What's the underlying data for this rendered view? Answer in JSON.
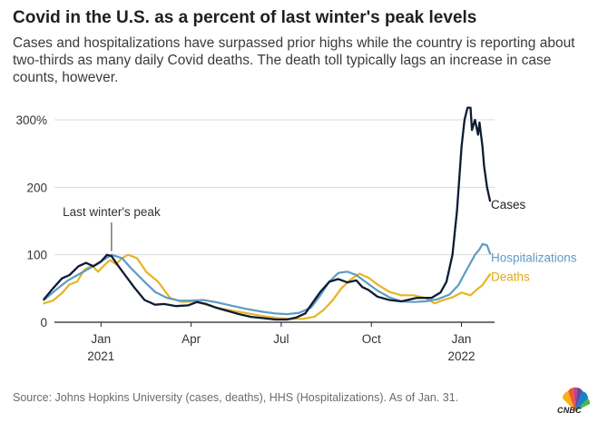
{
  "header": {
    "title": "Covid in the U.S. as a percent of last winter's peak levels",
    "subtitle": "Cases and hospitalizations have surpassed prior highs while the country is reporting about two-thirds as many daily Covid deaths. The death toll typically lags an increase in case counts, however."
  },
  "footer": {
    "source": "Source: Johns Hopkins University (cases, deaths), HHS (Hospitalizations). As of Jan. 31.",
    "logo_text": "CNBC"
  },
  "chart_data": {
    "type": "line",
    "ylim": [
      0,
      320
    ],
    "yticks": [
      0,
      100,
      200,
      300
    ],
    "ytick_labels": [
      "0",
      "100",
      "200",
      "300%"
    ],
    "xlim": [
      -1.55,
      12.95
    ],
    "xticks": [
      {
        "pos": 0,
        "label": "Jan",
        "sub": "2021"
      },
      {
        "pos": 3,
        "label": "Apr",
        "sub": ""
      },
      {
        "pos": 6,
        "label": "Jul",
        "sub": ""
      },
      {
        "pos": 9,
        "label": "Oct",
        "sub": ""
      },
      {
        "pos": 12,
        "label": "Jan",
        "sub": "2022"
      }
    ],
    "grid": true,
    "annotation": {
      "text": "Last winter's peak",
      "x": 0.35,
      "y": 100
    },
    "series": [
      {
        "name": "Cases",
        "color": "#0d1b33",
        "x": [
          -1.9,
          -1.6,
          -1.3,
          -1.05,
          -0.75,
          -0.5,
          -0.25,
          0,
          0.2,
          0.35,
          0.55,
          0.8,
          1.1,
          1.45,
          1.8,
          2.1,
          2.5,
          2.9,
          3.2,
          3.5,
          3.8,
          4.2,
          4.6,
          5.0,
          5.4,
          5.8,
          6.2,
          6.5,
          6.8,
          7.0,
          7.3,
          7.6,
          7.9,
          8.2,
          8.5,
          8.7,
          8.9,
          9.2,
          9.6,
          10.0,
          10.5,
          11.0,
          11.3,
          11.5,
          11.7,
          11.85,
          12.0,
          12.1,
          12.2,
          12.3,
          12.35,
          12.45,
          12.55,
          12.6,
          12.7,
          12.75,
          12.85,
          12.95
        ],
        "y": [
          34,
          50,
          65,
          70,
          83,
          88,
          83,
          90,
          100,
          98,
          85,
          70,
          52,
          33,
          26,
          27,
          24,
          25,
          30,
          27,
          22,
          17,
          12,
          8,
          6,
          4,
          4,
          7,
          13,
          26,
          45,
          60,
          64,
          59,
          62,
          52,
          48,
          38,
          33,
          31,
          36,
          36,
          44,
          60,
          100,
          165,
          260,
          300,
          318,
          318,
          285,
          300,
          278,
          296,
          260,
          232,
          200,
          180
        ]
      },
      {
        "name": "Hospitalizations",
        "color": "#5d9bc5",
        "x": [
          -1.9,
          -1.5,
          -1.1,
          -0.7,
          -0.3,
          0,
          0.35,
          0.7,
          1.0,
          1.4,
          1.8,
          2.2,
          2.6,
          3.0,
          3.4,
          3.8,
          4.3,
          4.8,
          5.3,
          5.8,
          6.2,
          6.6,
          7.0,
          7.3,
          7.6,
          7.9,
          8.2,
          8.5,
          8.8,
          9.2,
          9.6,
          10.0,
          10.4,
          10.8,
          11.2,
          11.6,
          11.9,
          12.1,
          12.3,
          12.45,
          12.6,
          12.7,
          12.85,
          12.95
        ],
        "y": [
          33,
          48,
          62,
          72,
          82,
          90,
          100,
          95,
          80,
          62,
          45,
          36,
          32,
          32,
          33,
          30,
          25,
          20,
          16,
          13,
          12,
          14,
          22,
          40,
          60,
          73,
          75,
          70,
          60,
          47,
          37,
          31,
          30,
          31,
          34,
          41,
          55,
          72,
          88,
          100,
          108,
          116,
          114,
          102
        ]
      },
      {
        "name": "Deaths",
        "color": "#e7b424",
        "x": [
          -1.9,
          -1.6,
          -1.3,
          -1.05,
          -0.8,
          -0.55,
          -0.3,
          -0.1,
          0.1,
          0.3,
          0.5,
          0.7,
          0.9,
          1.2,
          1.5,
          1.9,
          2.3,
          2.7,
          3.1,
          3.5,
          3.9,
          4.4,
          4.9,
          5.4,
          5.9,
          6.3,
          6.7,
          7.1,
          7.4,
          7.7,
          8.0,
          8.3,
          8.6,
          8.9,
          9.2,
          9.6,
          10.0,
          10.4,
          10.8,
          11.1,
          11.4,
          11.7,
          12.0,
          12.3,
          12.5,
          12.7,
          12.85,
          12.95
        ],
        "y": [
          28,
          32,
          43,
          56,
          60,
          78,
          84,
          75,
          84,
          92,
          86,
          95,
          100,
          95,
          75,
          60,
          36,
          30,
          31,
          26,
          21,
          17,
          13,
          9,
          6,
          5,
          5,
          8,
          18,
          32,
          50,
          63,
          72,
          66,
          56,
          45,
          40,
          40,
          36,
          28,
          33,
          37,
          44,
          40,
          48,
          55,
          65,
          71
        ]
      }
    ],
    "series_labels": [
      {
        "name": "Cases",
        "text": "Cases",
        "color": "#222222",
        "y": 175
      },
      {
        "name": "Hospitalizations",
        "text": "Hospitalizations",
        "color": "#5d9bc5",
        "y": 96
      },
      {
        "name": "Deaths",
        "text": "Deaths",
        "color": "#e0a91a",
        "y": 68
      }
    ]
  }
}
